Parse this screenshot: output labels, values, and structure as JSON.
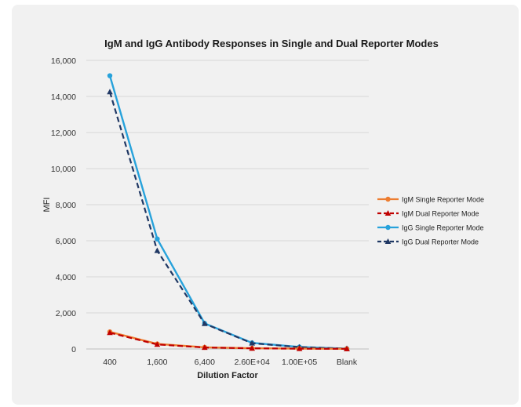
{
  "chart_data": {
    "type": "line",
    "title": "IgM and IgG Antibody Responses in Single and Dual Reporter Modes",
    "xlabel": "Dilution Factor",
    "ylabel": "MFI",
    "categories": [
      "400",
      "1,600",
      "6,400",
      "2.60E+04",
      "1.00E+05",
      "Blank"
    ],
    "ylim": [
      0,
      16000
    ],
    "yticks": [
      "0",
      "2,000",
      "4,000",
      "6,000",
      "8,000",
      "10,000",
      "12,000",
      "14,000",
      "16,000"
    ],
    "grid": true,
    "legend_position": "right",
    "series": [
      {
        "name": "IgM Single Reporter Mode",
        "values": [
          950,
          280,
          90,
          40,
          20,
          10
        ],
        "color": "#ED7D31",
        "marker": "circle",
        "dash": "solid"
      },
      {
        "name": "IgM Dual Reporter Mode",
        "values": [
          900,
          250,
          80,
          35,
          15,
          8
        ],
        "color": "#C00000",
        "marker": "triangle",
        "dash": "dashed"
      },
      {
        "name": "IgG Single Reporter Mode",
        "values": [
          15150,
          6100,
          1420,
          340,
          110,
          20
        ],
        "color": "#27A2DB",
        "marker": "circle",
        "dash": "solid"
      },
      {
        "name": "IgG Dual Reporter Mode",
        "values": [
          14250,
          5450,
          1400,
          320,
          100,
          20
        ],
        "color": "#203864",
        "marker": "triangle",
        "dash": "dashed"
      }
    ]
  }
}
